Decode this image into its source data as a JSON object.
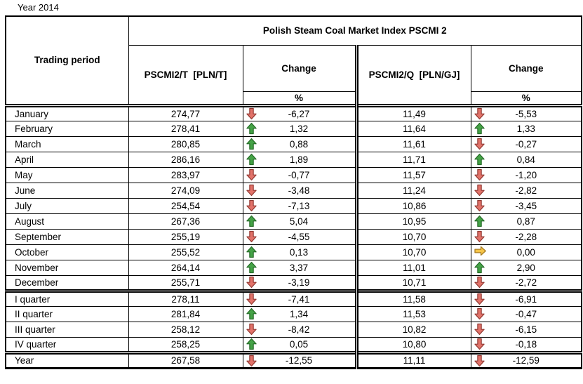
{
  "page_title": "Year 2014",
  "table": {
    "title": "Polish Steam Coal Market Index PSCMI 2",
    "col_trading_period": "Trading period",
    "col_t": "PSCMI2/T  [PLN/T]",
    "col_change_t": "Change",
    "col_change_t_unit": "%",
    "col_q": "PSCMI2/Q  [PLN/GJ]",
    "col_change_q": "Change",
    "col_change_q_unit": "%",
    "rows": [
      {
        "period": "January",
        "group": "month",
        "t": "274,77",
        "t_dir": "down",
        "t_chg": "-6,27",
        "q": "11,49",
        "q_dir": "down",
        "q_chg": "-5,53"
      },
      {
        "period": "February",
        "group": "month",
        "t": "278,41",
        "t_dir": "up",
        "t_chg": "1,32",
        "q": "11,64",
        "q_dir": "up",
        "q_chg": "1,33"
      },
      {
        "period": "March",
        "group": "month",
        "t": "280,85",
        "t_dir": "up",
        "t_chg": "0,88",
        "q": "11,61",
        "q_dir": "down",
        "q_chg": "-0,27"
      },
      {
        "period": "April",
        "group": "month",
        "t": "286,16",
        "t_dir": "up",
        "t_chg": "1,89",
        "q": "11,71",
        "q_dir": "up",
        "q_chg": "0,84"
      },
      {
        "period": "May",
        "group": "month",
        "t": "283,97",
        "t_dir": "down",
        "t_chg": "-0,77",
        "q": "11,57",
        "q_dir": "down",
        "q_chg": "-1,20"
      },
      {
        "period": "June",
        "group": "month",
        "t": "274,09",
        "t_dir": "down",
        "t_chg": "-3,48",
        "q": "11,24",
        "q_dir": "down",
        "q_chg": "-2,82"
      },
      {
        "period": "July",
        "group": "month",
        "t": "254,54",
        "t_dir": "down",
        "t_chg": "-7,13",
        "q": "10,86",
        "q_dir": "down",
        "q_chg": "-3,45"
      },
      {
        "period": "August",
        "group": "month",
        "t": "267,36",
        "t_dir": "up",
        "t_chg": "5,04",
        "q": "10,95",
        "q_dir": "up",
        "q_chg": "0,87"
      },
      {
        "period": "September",
        "group": "month",
        "t": "255,19",
        "t_dir": "down",
        "t_chg": "-4,55",
        "q": "10,70",
        "q_dir": "down",
        "q_chg": "-2,28"
      },
      {
        "period": "October",
        "group": "month",
        "t": "255,52",
        "t_dir": "up",
        "t_chg": "0,13",
        "q": "10,70",
        "q_dir": "right",
        "q_chg": "0,00"
      },
      {
        "period": "November",
        "group": "month",
        "t": "264,14",
        "t_dir": "up",
        "t_chg": "3,37",
        "q": "11,01",
        "q_dir": "up",
        "q_chg": "2,90"
      },
      {
        "period": "December",
        "group": "month",
        "t": "255,71",
        "t_dir": "down",
        "t_chg": "-3,19",
        "q": "10,71",
        "q_dir": "down",
        "q_chg": "-2,72"
      },
      {
        "period": "I quarter",
        "group": "quarter",
        "t": "278,11",
        "t_dir": "down",
        "t_chg": "-7,41",
        "q": "11,58",
        "q_dir": "down",
        "q_chg": "-6,91"
      },
      {
        "period": "II quarter",
        "group": "quarter",
        "t": "281,84",
        "t_dir": "up",
        "t_chg": "1,34",
        "q": "11,53",
        "q_dir": "down",
        "q_chg": "-0,47"
      },
      {
        "period": "III quarter",
        "group": "quarter",
        "t": "258,12",
        "t_dir": "down",
        "t_chg": "-8,42",
        "q": "10,82",
        "q_dir": "down",
        "q_chg": "-6,15"
      },
      {
        "period": "IV quarter",
        "group": "quarter",
        "t": "258,25",
        "t_dir": "up",
        "t_chg": "0,05",
        "q": "10,80",
        "q_dir": "down",
        "q_chg": "-0,18"
      },
      {
        "period": "Year",
        "group": "year",
        "t": "267,58",
        "t_dir": "down",
        "t_chg": "-12,55",
        "q": "11,11",
        "q_dir": "down",
        "q_chg": "-12,59"
      }
    ]
  },
  "icons": {
    "up": {
      "name": "arrow-up-icon",
      "fill": "#45A347",
      "stroke": "#256B27"
    },
    "down": {
      "name": "arrow-down-icon",
      "fill": "#E2736A",
      "stroke": "#933B34"
    },
    "right": {
      "name": "arrow-right-icon",
      "fill": "#F6C548",
      "stroke": "#A87C21"
    }
  },
  "border_color": "#000000"
}
